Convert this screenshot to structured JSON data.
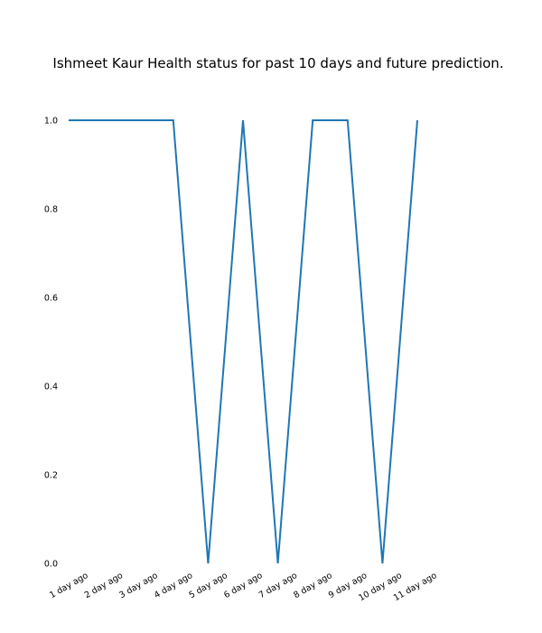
{
  "chart_data": {
    "type": "line",
    "title": "Ishmeet Kaur Health status for past 10 days and future prediction.",
    "xlabel": "",
    "ylabel": "",
    "categories": [
      "1 day ago",
      "2 day ago",
      "3 day ago",
      "4 day ago",
      "5 day ago",
      "6 day ago",
      "7 day ago",
      "8 day ago",
      "9 day ago",
      "10 day ago",
      "11 day ago"
    ],
    "series": [
      {
        "values": [
          1.0,
          1.0,
          1.0,
          1.0,
          0.0,
          1.0,
          0.0,
          1.0,
          1.0,
          0.0,
          1.0
        ]
      }
    ],
    "ylim": [
      0.0,
      1.0
    ],
    "yticks": [
      "0.0",
      "0.2",
      "0.4",
      "0.6",
      "0.8",
      "1.0"
    ],
    "grid": false,
    "line_color": "#1f77b4"
  }
}
